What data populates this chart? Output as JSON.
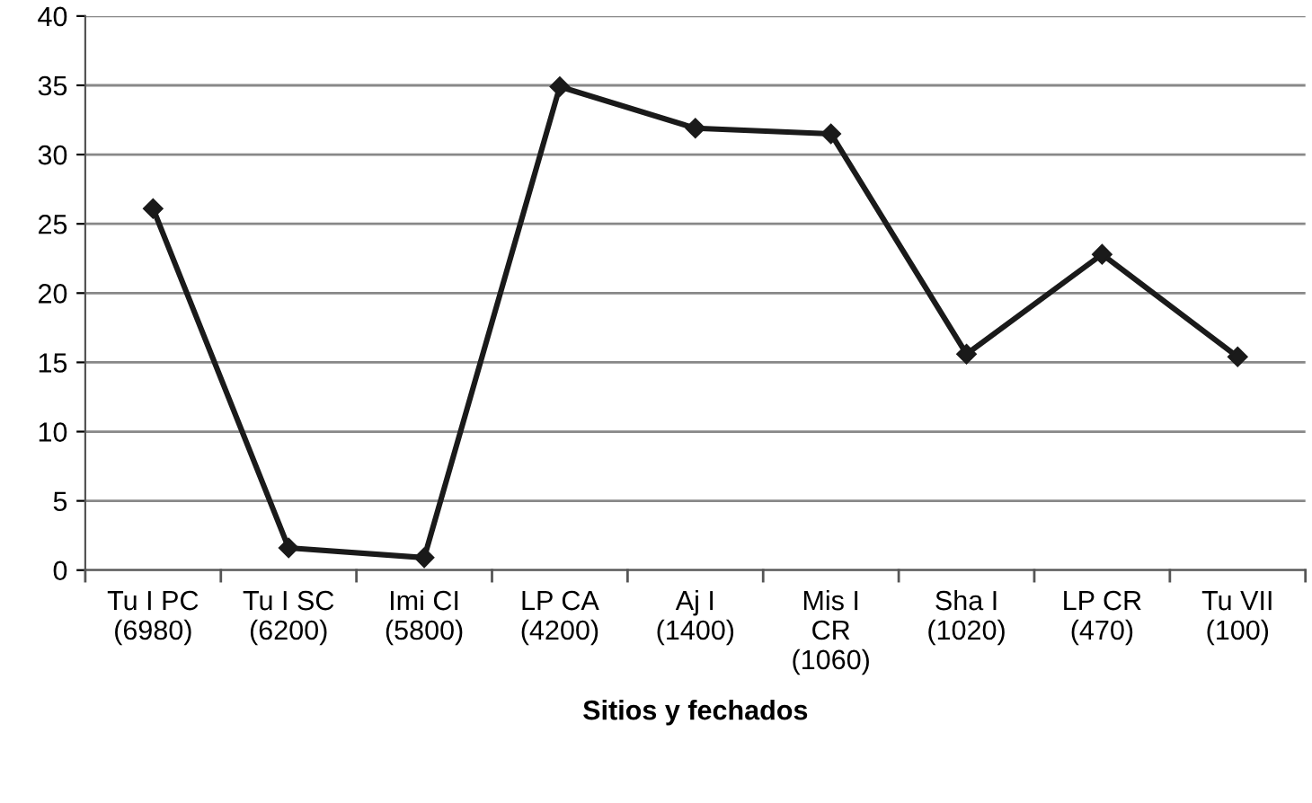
{
  "chart_data": {
    "type": "line",
    "xlabel": "Sitios y fechados",
    "categories": [
      "Tu I PC\n(6980)",
      "Tu I SC\n(6200)",
      "Imi CI\n(5800)",
      "LP CA\n(4200)",
      "Aj I\n(1400)",
      "Mis I\nCR\n(1060)",
      "Sha I\n(1020)",
      "LP CR\n(470)",
      "Tu VII\n(100)"
    ],
    "series": [
      {
        "color": "#1a1a1a",
        "values": [
          26.1,
          1.6,
          0.9,
          34.9,
          31.9,
          31.5,
          15.6,
          22.8,
          15.4
        ]
      }
    ],
    "ylim": [
      0,
      40
    ],
    "yticks": [
      0,
      5,
      10,
      15,
      20,
      25,
      30,
      35,
      40
    ],
    "grid": "y",
    "marker": "diamond",
    "line_style": "solid",
    "legend": false
  }
}
